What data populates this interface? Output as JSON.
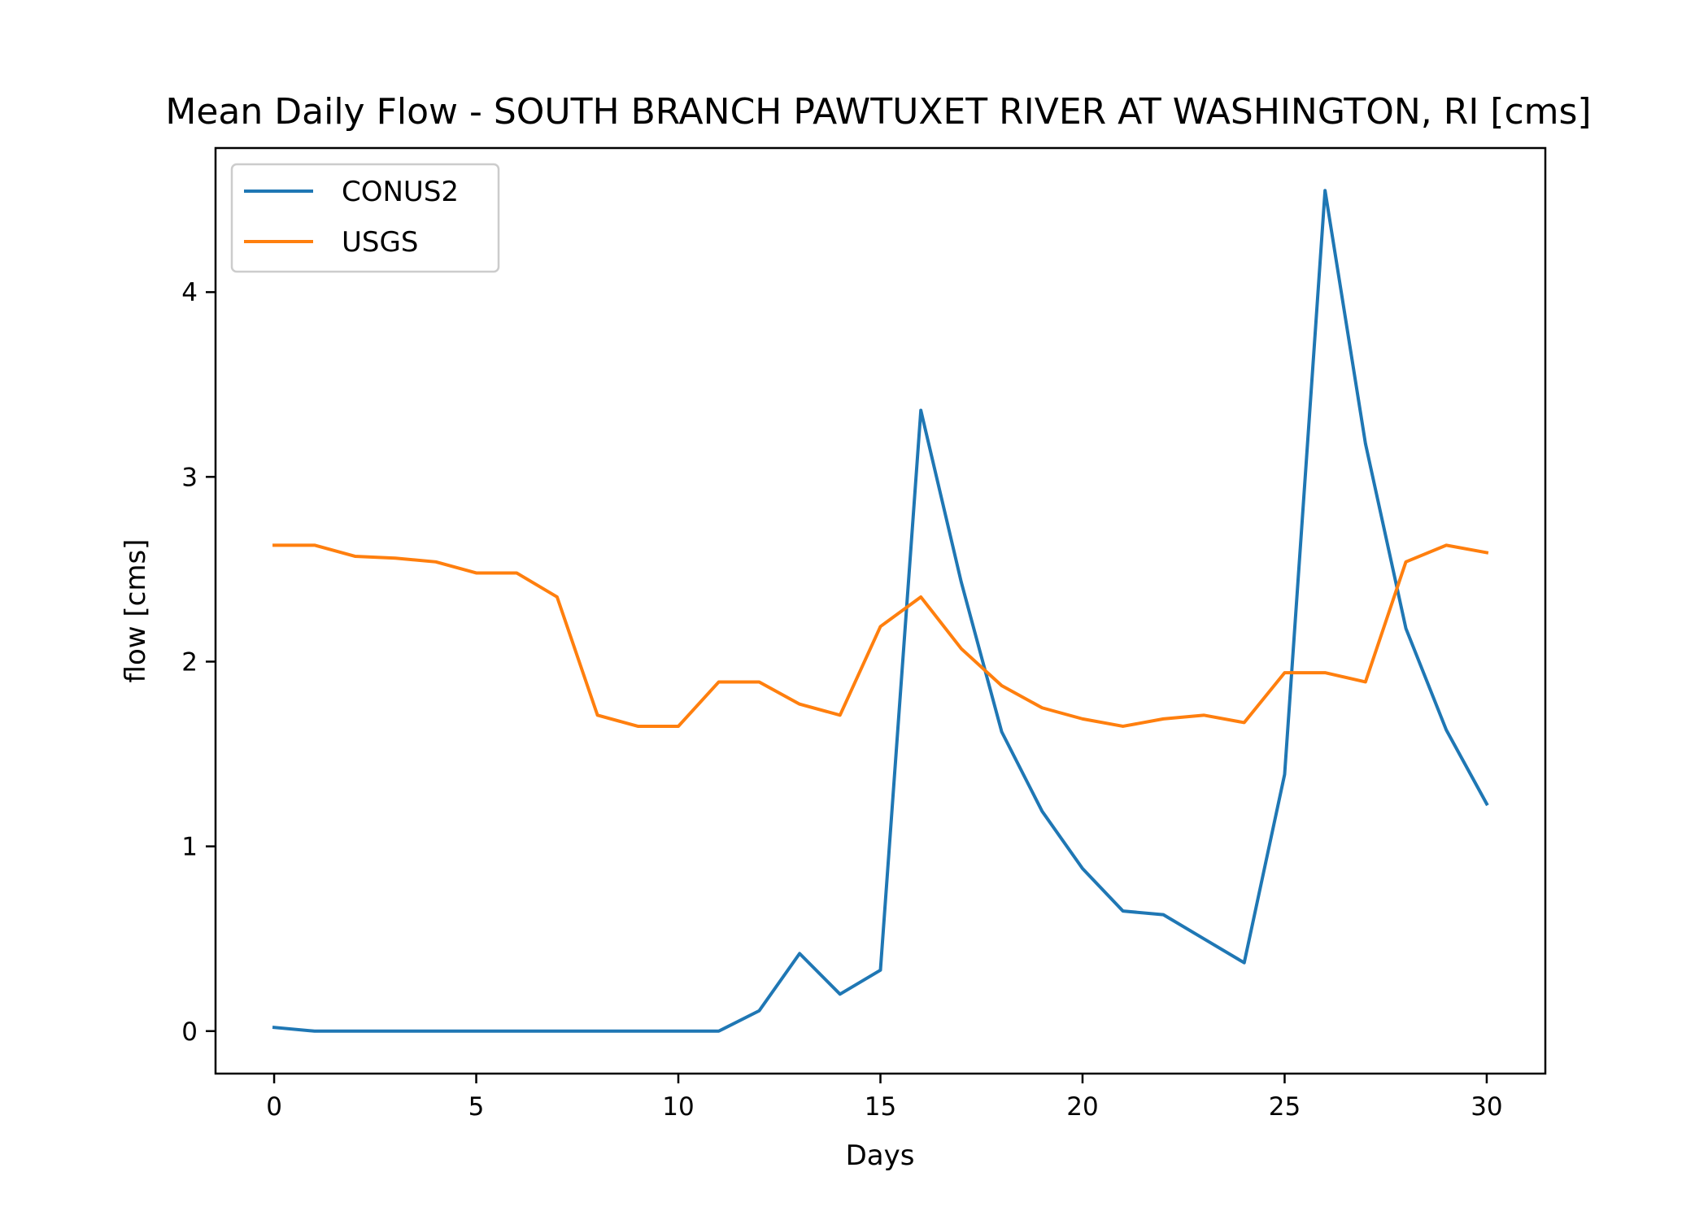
{
  "chart_data": {
    "type": "line",
    "title": "Mean Daily Flow - SOUTH BRANCH PAWTUXET RIVER AT WASHINGTON, RI [cms]",
    "xlabel": "Days",
    "ylabel": "flow [cms]",
    "xlim": [
      -1.45,
      31.45
    ],
    "ylim": [
      -0.23,
      4.78
    ],
    "xticks": [
      0,
      5,
      10,
      15,
      20,
      25,
      30
    ],
    "yticks": [
      0,
      1,
      2,
      3,
      4
    ],
    "grid": false,
    "legend_position": "upper-left",
    "x": [
      0,
      1,
      2,
      3,
      4,
      5,
      6,
      7,
      8,
      9,
      10,
      11,
      12,
      13,
      14,
      15,
      16,
      17,
      18,
      19,
      20,
      21,
      22,
      23,
      24,
      25,
      26,
      27,
      28,
      29,
      30
    ],
    "series": [
      {
        "name": "CONUS2",
        "color": "#1f77b4",
        "values": [
          0.02,
          0.0,
          0.0,
          0.0,
          0.0,
          0.0,
          0.0,
          0.0,
          0.0,
          0.0,
          0.0,
          0.0,
          0.11,
          0.42,
          0.2,
          0.33,
          3.36,
          2.43,
          1.62,
          1.19,
          0.88,
          0.65,
          0.63,
          0.5,
          0.37,
          1.39,
          4.55,
          3.18,
          2.18,
          1.63,
          1.23
        ]
      },
      {
        "name": "USGS",
        "color": "#ff7f0e",
        "values": [
          2.63,
          2.63,
          2.57,
          2.56,
          2.54,
          2.48,
          2.48,
          2.35,
          1.71,
          1.65,
          1.65,
          1.89,
          1.89,
          1.77,
          1.71,
          2.19,
          2.35,
          2.07,
          1.87,
          1.75,
          1.69,
          1.65,
          1.69,
          1.71,
          1.67,
          1.94,
          1.94,
          1.89,
          2.54,
          2.63,
          2.59
        ]
      }
    ]
  }
}
